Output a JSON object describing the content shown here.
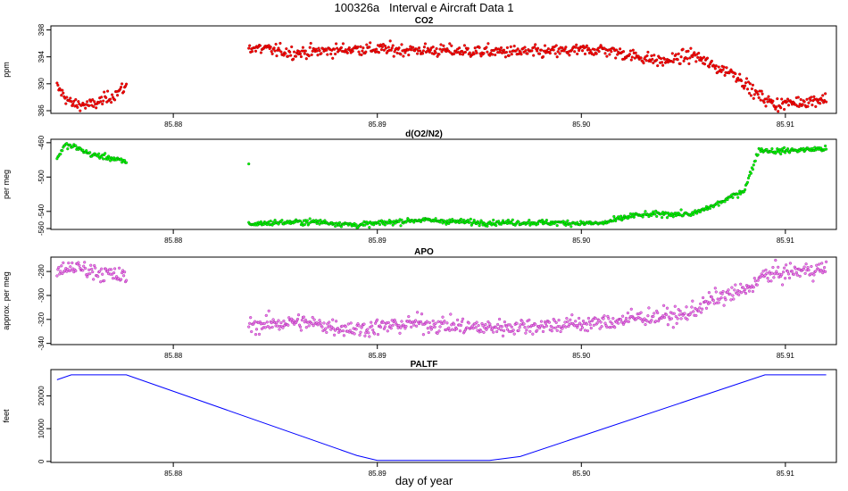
{
  "title": "100326a   Interval e Aircraft Data 1",
  "xlabel": "day of year",
  "chart_data": [
    {
      "type": "scatter",
      "title": "CO2",
      "ylabel": "ppm",
      "xlim": [
        85.874,
        85.9125
      ],
      "ylim": [
        385.6,
        398.6
      ],
      "xticks": [
        "85.88",
        "85.89",
        "85.90",
        "85.91"
      ],
      "yticks": [
        "386",
        "390",
        "394",
        "398"
      ],
      "color": "#ff0000",
      "series": [
        {
          "x": [
            85.8743,
            85.875,
            85.876,
            85.877,
            85.8777
          ],
          "y": [
            389.5,
            387.0,
            386.8,
            388.2,
            389.6
          ]
        },
        {
          "x": [
            85.8837,
            85.886,
            85.889,
            85.892,
            85.895,
            85.898,
            85.901,
            85.904,
            85.9055,
            85.9065,
            85.9075,
            85.9085,
            85.9095,
            85.911,
            85.912
          ],
          "y": [
            395.4,
            394.6,
            395.2,
            395.0,
            394.8,
            394.7,
            395.1,
            393.3,
            394.3,
            392.5,
            391.6,
            388.6,
            386.9,
            387.4,
            387.8
          ]
        }
      ]
    },
    {
      "type": "scatter",
      "title": "d(O2/N2)",
      "ylabel": "per meg",
      "xlim": [
        85.874,
        85.9125
      ],
      "ylim": [
        -561,
        -456
      ],
      "xticks": [
        "85.88",
        "85.89",
        "85.90",
        "85.91"
      ],
      "yticks": [
        "-560",
        "-540",
        "-500",
        "-460"
      ],
      "color": "#00ff00",
      "series": [
        {
          "x": [
            85.8743,
            85.8747,
            85.8752,
            85.876,
            85.8768,
            85.8777
          ],
          "y": [
            -478,
            -463,
            -465,
            -474,
            -477,
            -483
          ]
        },
        {
          "x": [
            85.8837
          ],
          "y": [
            -482
          ]
        },
        {
          "x": [
            85.8837,
            85.885,
            85.887,
            85.889,
            85.892,
            85.895,
            85.898,
            85.901,
            85.9025,
            85.904,
            85.9055,
            85.9068,
            85.908,
            85.9087,
            85.9095,
            85.911,
            85.912
          ],
          "y": [
            -555,
            -553,
            -552,
            -556,
            -550,
            -553,
            -553,
            -554,
            -545,
            -543,
            -543,
            -530,
            -515,
            -468,
            -470,
            -468,
            -467
          ]
        }
      ]
    },
    {
      "type": "scatter",
      "title": "APO",
      "ylabel": "approx. per meg",
      "xlim": [
        85.874,
        85.9125
      ],
      "ylim": [
        -341,
        -268
      ],
      "xticks": [
        "85.88",
        "85.89",
        "85.90",
        "85.91"
      ],
      "yticks": [
        "-340",
        "-320",
        "-300",
        "-280"
      ],
      "color": "#ee82ee",
      "series": [
        {
          "x": [
            85.8743,
            85.875,
            85.876,
            85.877,
            85.8777
          ],
          "y": [
            -282,
            -276,
            -279,
            -283,
            -285
          ]
        },
        {
          "x": [
            85.8837,
            85.886,
            85.889,
            85.892,
            85.895,
            85.898,
            85.901,
            85.903,
            85.905,
            85.9065,
            85.908,
            85.909,
            85.91,
            85.911,
            85.912
          ],
          "y": [
            -325,
            -322,
            -328,
            -323,
            -327,
            -325,
            -323,
            -318,
            -317,
            -303,
            -296,
            -283,
            -281,
            -279,
            -278
          ]
        }
      ]
    },
    {
      "type": "line",
      "title": "PALTF",
      "ylabel": "feet",
      "xlim": [
        85.874,
        85.9125
      ],
      "ylim": [
        -300,
        28000
      ],
      "xticks": [
        "85.88",
        "85.89",
        "85.90",
        "85.91"
      ],
      "yticks": [
        "0",
        "10000",
        "20000"
      ],
      "color": "#0000ff",
      "series": [
        {
          "x": [
            85.8743,
            85.875,
            85.8777,
            85.889,
            85.89,
            85.8955,
            85.897,
            85.909,
            85.912
          ],
          "y": [
            24900,
            26400,
            26400,
            1800,
            300,
            300,
            1500,
            26400,
            26400
          ]
        }
      ]
    }
  ]
}
